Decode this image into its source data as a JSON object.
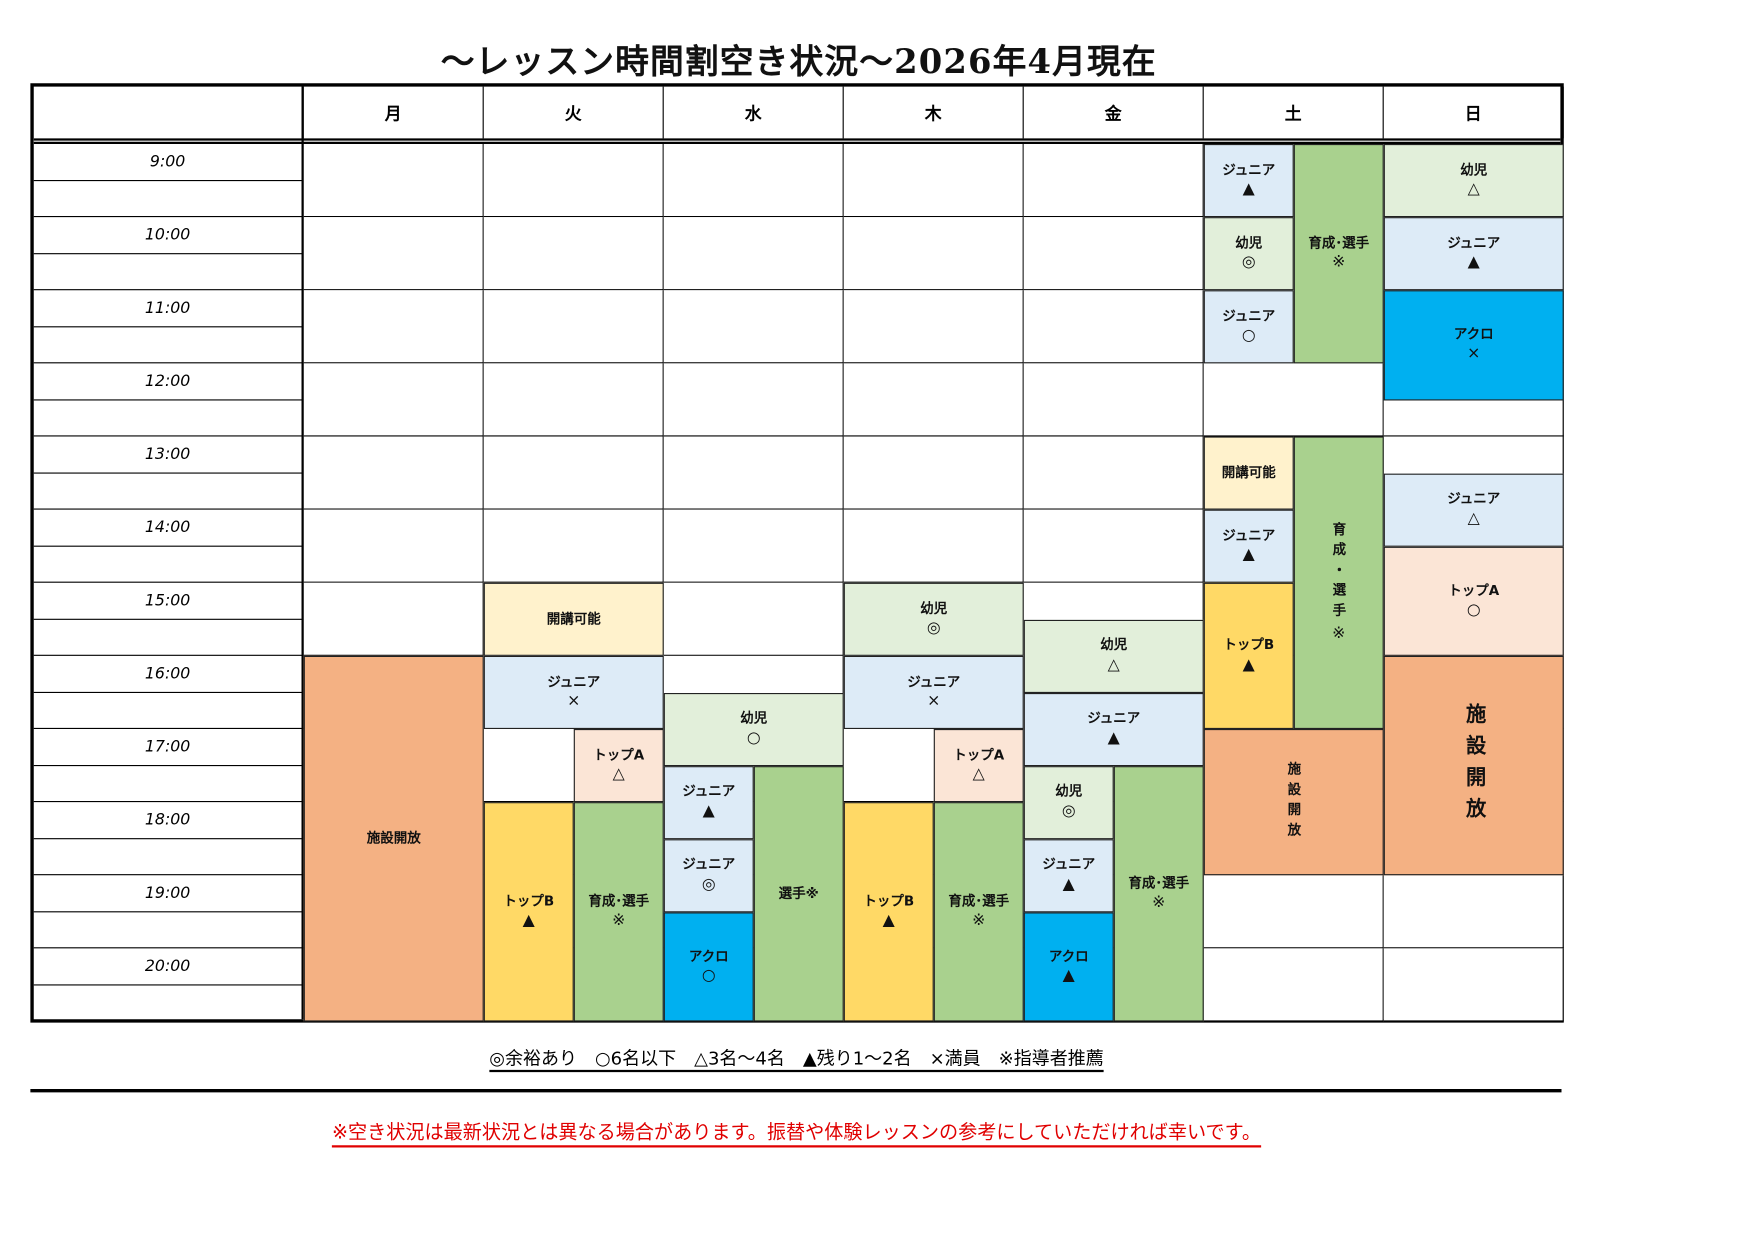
{
  "title": "～レッスン時間割空き状況～2026年4月現在",
  "days": [
    "月",
    "火",
    "水",
    "木",
    "金",
    "土",
    "日"
  ],
  "times": [
    "9:00",
    "10:00",
    "11:00",
    "12:00",
    "13:00",
    "14:00",
    "15:00",
    "16:00",
    "17:00",
    "18:00",
    "19:00",
    "20:00"
  ],
  "colors": {
    "facility": "#F4B183",
    "available": "#FFF2CC",
    "junior": "#DDEBF7",
    "topB": "#FFD966",
    "topA": "#FBE5D6",
    "athlete": "#A9D18E",
    "kids": "#E2EFDA",
    "acro": "#00B0F0"
  },
  "blocks": [
    {
      "day": 0,
      "start": "16:00",
      "end": "21:00",
      "lane": "full",
      "label": "施設開放",
      "symbol": "",
      "color": "facility"
    },
    {
      "day": 1,
      "start": "15:00",
      "end": "16:00",
      "lane": "full",
      "label": "開講可能",
      "symbol": "",
      "color": "available"
    },
    {
      "day": 1,
      "start": "16:00",
      "end": "17:00",
      "lane": "full",
      "label": "ジュニア",
      "symbol": "×",
      "color": "junior"
    },
    {
      "day": 1,
      "start": "18:00",
      "end": "21:00",
      "lane": "left",
      "label": "トップB",
      "symbol": "▲",
      "color": "topB"
    },
    {
      "day": 1,
      "start": "17:00",
      "end": "18:00",
      "lane": "right",
      "label": "トップA",
      "symbol": "△",
      "color": "topA"
    },
    {
      "day": 1,
      "start": "18:00",
      "end": "21:00",
      "lane": "right",
      "label": "育成･選手",
      "symbol": "※",
      "color": "athlete"
    },
    {
      "day": 2,
      "start": "16:30",
      "end": "17:30",
      "lane": "full",
      "label": "幼児",
      "symbol": "○",
      "color": "kids"
    },
    {
      "day": 2,
      "start": "17:30",
      "end": "18:30",
      "lane": "left",
      "label": "ジュニア",
      "symbol": "▲",
      "color": "junior"
    },
    {
      "day": 2,
      "start": "18:30",
      "end": "19:30",
      "lane": "left",
      "label": "ジュニア",
      "symbol": "◎",
      "color": "junior"
    },
    {
      "day": 2,
      "start": "19:30",
      "end": "21:00",
      "lane": "left",
      "label": "アクロ",
      "symbol": "○",
      "color": "acro"
    },
    {
      "day": 2,
      "start": "17:30",
      "end": "21:00",
      "lane": "right",
      "label": "選手※",
      "symbol": "",
      "color": "athlete"
    },
    {
      "day": 3,
      "start": "15:00",
      "end": "16:00",
      "lane": "full",
      "label": "幼児",
      "symbol": "◎",
      "color": "kids"
    },
    {
      "day": 3,
      "start": "16:00",
      "end": "17:00",
      "lane": "full",
      "label": "ジュニア",
      "symbol": "×",
      "color": "junior"
    },
    {
      "day": 3,
      "start": "18:00",
      "end": "21:00",
      "lane": "left",
      "label": "トップB",
      "symbol": "▲",
      "color": "topB"
    },
    {
      "day": 3,
      "start": "17:00",
      "end": "18:00",
      "lane": "right",
      "label": "トップA",
      "symbol": "△",
      "color": "topA"
    },
    {
      "day": 3,
      "start": "18:00",
      "end": "21:00",
      "lane": "right",
      "label": "育成･選手",
      "symbol": "※",
      "color": "athlete"
    },
    {
      "day": 4,
      "start": "15:30",
      "end": "16:30",
      "lane": "full",
      "label": "幼児",
      "symbol": "△",
      "color": "kids"
    },
    {
      "day": 4,
      "start": "16:30",
      "end": "17:30",
      "lane": "full",
      "label": "ジュニア",
      "symbol": "▲",
      "color": "junior"
    },
    {
      "day": 4,
      "start": "17:30",
      "end": "18:30",
      "lane": "left",
      "label": "幼児",
      "symbol": "◎",
      "color": "kids"
    },
    {
      "day": 4,
      "start": "18:30",
      "end": "19:30",
      "lane": "left",
      "label": "ジュニア",
      "symbol": "▲",
      "color": "junior"
    },
    {
      "day": 4,
      "start": "19:30",
      "end": "21:00",
      "lane": "left",
      "label": "アクロ",
      "symbol": "▲",
      "color": "acro"
    },
    {
      "day": 4,
      "start": "17:30",
      "end": "21:00",
      "lane": "right",
      "label": "育成･選手",
      "symbol": "※",
      "color": "athlete"
    },
    {
      "day": 5,
      "start": "9:00",
      "end": "10:00",
      "lane": "left",
      "label": "ジュニア",
      "symbol": "▲",
      "color": "junior"
    },
    {
      "day": 5,
      "start": "10:00",
      "end": "11:00",
      "lane": "left",
      "label": "幼児",
      "symbol": "◎",
      "color": "kids"
    },
    {
      "day": 5,
      "start": "11:00",
      "end": "12:00",
      "lane": "left",
      "label": "ジュニア",
      "symbol": "○",
      "color": "junior"
    },
    {
      "day": 5,
      "start": "13:00",
      "end": "14:00",
      "lane": "left",
      "label": "開講可能",
      "symbol": "",
      "color": "available"
    },
    {
      "day": 5,
      "start": "14:00",
      "end": "15:00",
      "lane": "left",
      "label": "ジュニア",
      "symbol": "▲",
      "color": "junior"
    },
    {
      "day": 5,
      "start": "15:00",
      "end": "17:00",
      "lane": "left",
      "label": "トップB",
      "symbol": "▲",
      "color": "topB"
    },
    {
      "day": 5,
      "start": "9:00",
      "end": "12:00",
      "lane": "right",
      "label": "育成･選手",
      "symbol": "※",
      "color": "athlete"
    },
    {
      "day": 5,
      "start": "13:00",
      "end": "17:00",
      "lane": "right",
      "label": "育成・選手",
      "symbol": "※",
      "color": "athlete",
      "vertical": true
    },
    {
      "day": 5,
      "start": "17:00",
      "end": "19:00",
      "lane": "full",
      "label": "施設開放",
      "symbol": "",
      "color": "facility",
      "vertical": true
    },
    {
      "day": 6,
      "start": "9:00",
      "end": "10:00",
      "lane": "full",
      "label": "幼児",
      "symbol": "△",
      "color": "kids"
    },
    {
      "day": 6,
      "start": "10:00",
      "end": "11:00",
      "lane": "full",
      "label": "ジュニア",
      "symbol": "▲",
      "color": "junior"
    },
    {
      "day": 6,
      "start": "11:00",
      "end": "12:30",
      "lane": "full",
      "label": "アクロ",
      "symbol": "×",
      "color": "acro"
    },
    {
      "day": 6,
      "start": "13:30",
      "end": "14:30",
      "lane": "full",
      "label": "ジュニア",
      "symbol": "△",
      "color": "junior"
    },
    {
      "day": 6,
      "start": "14:30",
      "end": "16:00",
      "lane": "full",
      "label": "トップA",
      "symbol": "○",
      "color": "topA"
    },
    {
      "day": 6,
      "start": "16:00",
      "end": "19:00",
      "lane": "full",
      "label": "施設開放",
      "symbol": "",
      "color": "facility",
      "vertical": true,
      "big": true
    }
  ],
  "legend": "◎余裕あり　○6名以下　△3名～4名　▲残り1～2名　×満員　※指導者推薦",
  "note": "※空き状況は最新状況とは異なる場合があります。振替や体験レッスンの参考にしていただければ幸いです。"
}
